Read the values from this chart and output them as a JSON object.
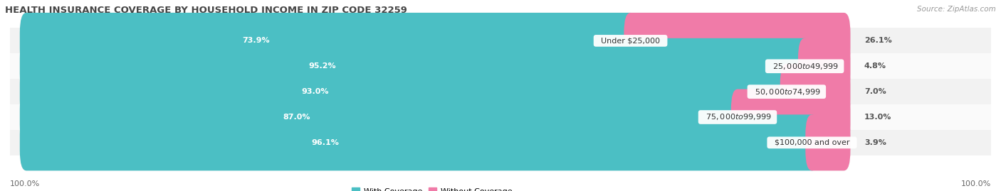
{
  "title": "HEALTH INSURANCE COVERAGE BY HOUSEHOLD INCOME IN ZIP CODE 32259",
  "source": "Source: ZipAtlas.com",
  "categories": [
    "Under $25,000",
    "$25,000 to $49,999",
    "$50,000 to $74,999",
    "$75,000 to $99,999",
    "$100,000 and over"
  ],
  "with_coverage": [
    73.9,
    95.2,
    93.0,
    87.0,
    96.1
  ],
  "without_coverage": [
    26.1,
    4.8,
    7.0,
    13.0,
    3.9
  ],
  "color_with": "#4BBFC4",
  "color_without": "#F07BA8",
  "bar_bg_color": "#E0E0E0",
  "row_bg_even": "#F2F2F2",
  "row_bg_odd": "#FAFAFA",
  "title_fontsize": 9.5,
  "label_fontsize": 8.0,
  "pct_fontsize": 8.0,
  "tick_fontsize": 8.0,
  "source_fontsize": 7.5,
  "legend_fontsize": 8.0,
  "bottom_labels": [
    "100.0%",
    "100.0%"
  ],
  "figsize": [
    14.06,
    2.69
  ],
  "dpi": 100
}
